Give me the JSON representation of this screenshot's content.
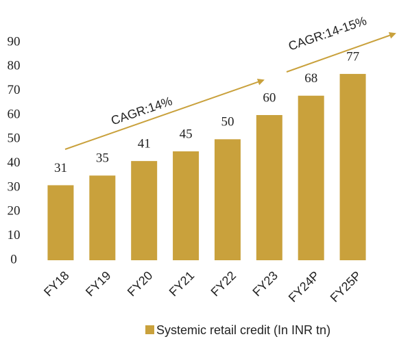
{
  "chart_data": {
    "type": "bar",
    "categories": [
      "FY18",
      "FY19",
      "FY20",
      "FY21",
      "FY22",
      "FY23",
      "FY24P",
      "FY25P"
    ],
    "series": [
      {
        "name": "Systemic retail credit (In INR tn)",
        "color": "#c9a13c",
        "values": [
          31,
          35,
          41,
          45,
          50,
          60,
          68,
          77
        ]
      }
    ],
    "ylim": [
      0,
      90
    ],
    "yticks": [
      0,
      10,
      20,
      30,
      40,
      50,
      60,
      70,
      80,
      90
    ],
    "annotations": [
      "CAGR:14%",
      "CAGR:14-15%"
    ],
    "legend": "bottom"
  }
}
